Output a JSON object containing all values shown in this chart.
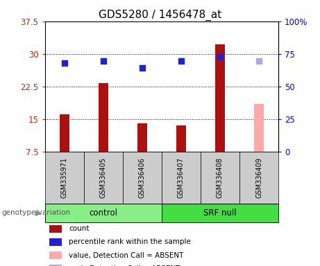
{
  "title": "GDS5280 / 1456478_at",
  "samples": [
    "GSM335971",
    "GSM336405",
    "GSM336406",
    "GSM336407",
    "GSM336408",
    "GSM336409"
  ],
  "count_values": [
    16.1,
    23.2,
    14.0,
    13.5,
    32.2,
    18.5
  ],
  "percentile_values": [
    68.0,
    69.5,
    64.0,
    69.5,
    72.5,
    69.5
  ],
  "absent_flags": [
    false,
    false,
    false,
    false,
    false,
    true
  ],
  "bar_color_present": "#aa1111",
  "bar_color_absent": "#ffaaaa",
  "dot_color_present": "#2222cc",
  "dot_color_absent": "#aaaadd",
  "ylim_left": [
    7.5,
    37.5
  ],
  "ylim_right": [
    0,
    100
  ],
  "yticks_left": [
    7.5,
    15.0,
    22.5,
    30.0,
    37.5
  ],
  "yticks_right": [
    0,
    25,
    50,
    75,
    100
  ],
  "ytick_labels_left": [
    "7.5",
    "15",
    "22.5",
    "30",
    "37.5"
  ],
  "ytick_labels_right": [
    "0",
    "25",
    "50",
    "75",
    "100%"
  ],
  "groups": [
    {
      "label": "control",
      "indices": [
        0,
        1,
        2
      ],
      "color": "#88ee88"
    },
    {
      "label": "SRF null",
      "indices": [
        3,
        4,
        5
      ],
      "color": "#44dd44"
    }
  ],
  "group_label_prefix": "genotype/variation",
  "legend_items": [
    {
      "label": "count",
      "color": "#aa1111"
    },
    {
      "label": "percentile rank within the sample",
      "color": "#2222cc"
    },
    {
      "label": "value, Detection Call = ABSENT",
      "color": "#ffaaaa"
    },
    {
      "label": "rank, Detection Call = ABSENT",
      "color": "#aaaadd"
    }
  ],
  "bar_width": 0.25,
  "dot_size": 40,
  "grid_color": "black",
  "plot_bg_color": "white",
  "title_fontsize": 11,
  "tick_fontsize": 8.5,
  "sample_box_color": "#cccccc"
}
